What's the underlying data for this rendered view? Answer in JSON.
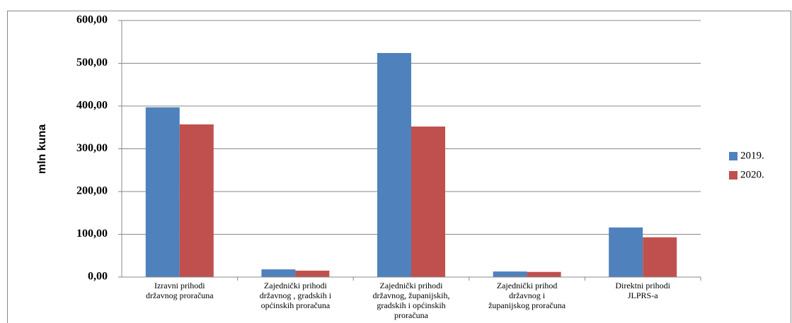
{
  "chart_data": {
    "type": "bar",
    "y_label": "mln kuna",
    "categories": [
      [
        "Izravni prihodi",
        "državnog proračuna"
      ],
      [
        "Zajednički prihodi",
        "državnog , gradskih i",
        "općinskih proračuna"
      ],
      [
        "Zajednički prihodi",
        "državnog, županijskih,",
        "gradskih i općinskih",
        "proračuna"
      ],
      [
        "Zajednički prihod",
        "državnog i",
        "županijskog proračuna"
      ],
      [
        "Direktni prihodi",
        "JLPRS-a"
      ]
    ],
    "series": [
      {
        "name": "2019.",
        "color": "#4f81bd",
        "values": [
          397,
          18,
          524,
          13,
          116
        ]
      },
      {
        "name": "2020.",
        "color": "#c0504d",
        "values": [
          357,
          15,
          352,
          12,
          93
        ]
      }
    ],
    "ylim": [
      0,
      600
    ],
    "yticks": [
      {
        "value": 0,
        "label": "0,00"
      },
      {
        "value": 100,
        "label": "100,00"
      },
      {
        "value": 200,
        "label": "200,00"
      },
      {
        "value": 300,
        "label": "300,00"
      },
      {
        "value": 400,
        "label": "400,00"
      },
      {
        "value": 500,
        "label": "500,00"
      },
      {
        "value": 600,
        "label": "600,00"
      }
    ],
    "grid": true,
    "legend": "right"
  }
}
